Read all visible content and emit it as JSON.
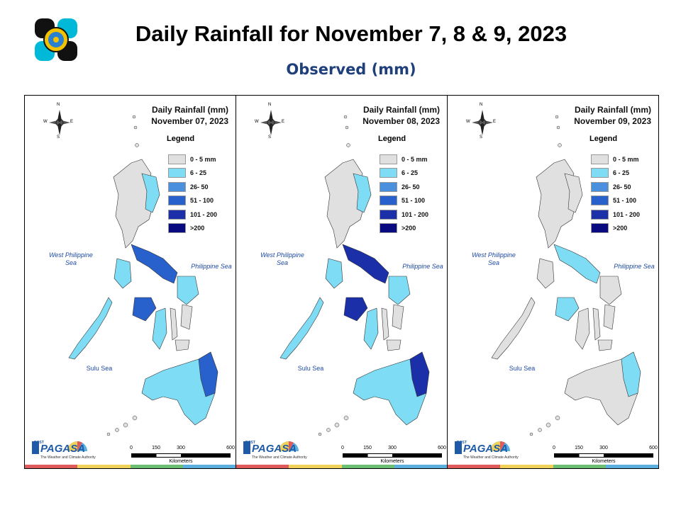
{
  "header": {
    "title": "Daily Rainfall for November 7, 8 & 9, 2023",
    "subtitle": "Observed (mm)"
  },
  "legend": {
    "title": "Legend",
    "items": [
      {
        "label": "0 - 5 mm",
        "color": "#e0e0e0"
      },
      {
        "label": "6 - 25",
        "color": "#7fdcf5"
      },
      {
        "label": "26- 50",
        "color": "#4a90de"
      },
      {
        "label": "51 - 100",
        "color": "#2860cc"
      },
      {
        "label": "101 - 200",
        "color": "#1b2fa8"
      },
      {
        "label": ">200",
        "color": "#0a0a80"
      }
    ]
  },
  "panels": [
    {
      "heading": "Daily Rainfall (mm)",
      "date": "November 07, 2023",
      "dominant": [
        "#e0e0e0",
        "#7fdcf5",
        "#2860cc"
      ]
    },
    {
      "heading": "Daily Rainfall (mm)",
      "date": "November 08, 2023",
      "dominant": [
        "#e0e0e0",
        "#7fdcf5",
        "#1b2fa8"
      ]
    },
    {
      "heading": "Daily Rainfall (mm)",
      "date": "November 09, 2023",
      "dominant": [
        "#e0e0e0",
        "#e0e0e0",
        "#7fdcf5"
      ]
    }
  ],
  "labels": {
    "west_sea": "West Philippine Sea",
    "philippine_sea": "Philippine Sea",
    "sulu_sea": "Sulu Sea",
    "compass_n": "N",
    "compass_s": "S",
    "compass_e": "E",
    "compass_w": "W"
  },
  "scale": {
    "ticks": [
      "0",
      "150",
      "300",
      "600"
    ],
    "unit": "Kilometers"
  },
  "brand": {
    "name": "PAGASA",
    "prefix": "DOST",
    "tagline": "The Weather and Climate Authority"
  },
  "colors": {
    "stripe": [
      "#e05b5b",
      "#f0d25a",
      "#6dbf73",
      "#5bb0e0"
    ],
    "title_blue": "#1f3f7a"
  }
}
